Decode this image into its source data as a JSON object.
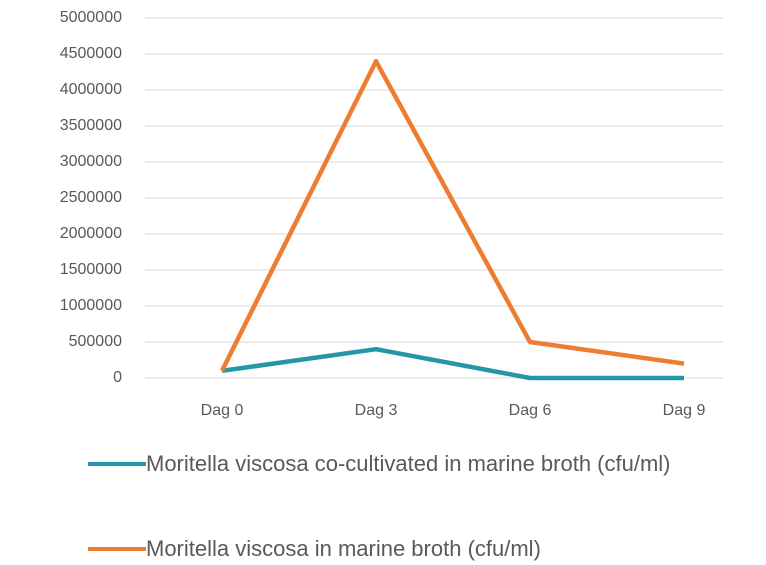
{
  "chart_data": {
    "type": "line",
    "categories": [
      "Dag 0",
      "Dag 3",
      "Dag 6",
      "Dag 9"
    ],
    "series": [
      {
        "name": "Moritella viscosa co-cultivated in marine broth (cfu/ml)",
        "color": "#2397a7",
        "values": [
          100000,
          400000,
          0,
          0
        ]
      },
      {
        "name": "Moritella viscosa in marine broth (cfu/ml)",
        "color": "#ed7d31",
        "values": [
          100000,
          4400000,
          500000,
          200000
        ]
      }
    ],
    "ylim": [
      0,
      5000000
    ],
    "yticks": [
      0,
      500000,
      1000000,
      1500000,
      2000000,
      2500000,
      3000000,
      3500000,
      4000000,
      4500000,
      5000000
    ],
    "grid": true,
    "legend": "bottom"
  }
}
